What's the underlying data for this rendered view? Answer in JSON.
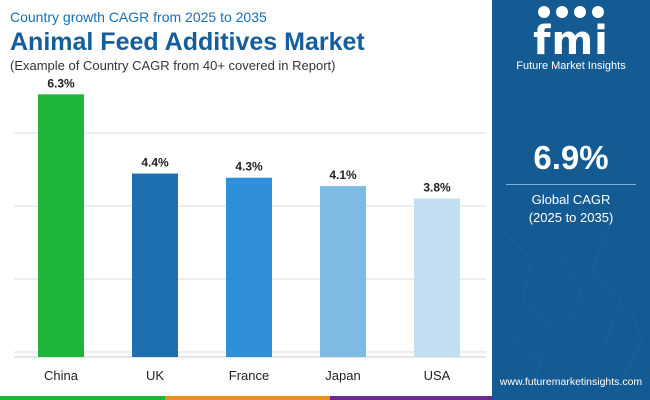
{
  "header": {
    "supertitle": "Country growth CAGR from 2025 to 2035",
    "title": "Animal Feed Additives Market",
    "subtitle": "(Example of Country CAGR from 40+ covered in Report)"
  },
  "chart_data": {
    "type": "bar",
    "title": "Animal Feed Additives Market",
    "categories": [
      "China",
      "UK",
      "France",
      "Japan",
      "USA"
    ],
    "values": [
      6.3,
      4.4,
      4.3,
      4.1,
      3.8
    ],
    "value_labels": [
      "6.3%",
      "4.4%",
      "4.3%",
      "4.1%",
      "3.8%"
    ],
    "colors": [
      "#1db53a",
      "#1e6fb0",
      "#2f8fd8",
      "#7fbae3",
      "#c3def2"
    ],
    "xlabel": "",
    "ylabel": "",
    "ylim": [
      0,
      6.5
    ],
    "grid": true
  },
  "brand": {
    "logo_mark": "fmi",
    "logo_text": "Future Market Insights",
    "website": "www.futuremarketinsights.com"
  },
  "metric": {
    "value": "6.9%",
    "label": "Global CAGR",
    "period": "(2025 to 2035)"
  },
  "colors": {
    "panel": "#155b93",
    "title": "#155e9c",
    "strip": [
      "#1db53a",
      "#e8901a",
      "#6a2b8e",
      "#155b93"
    ]
  }
}
